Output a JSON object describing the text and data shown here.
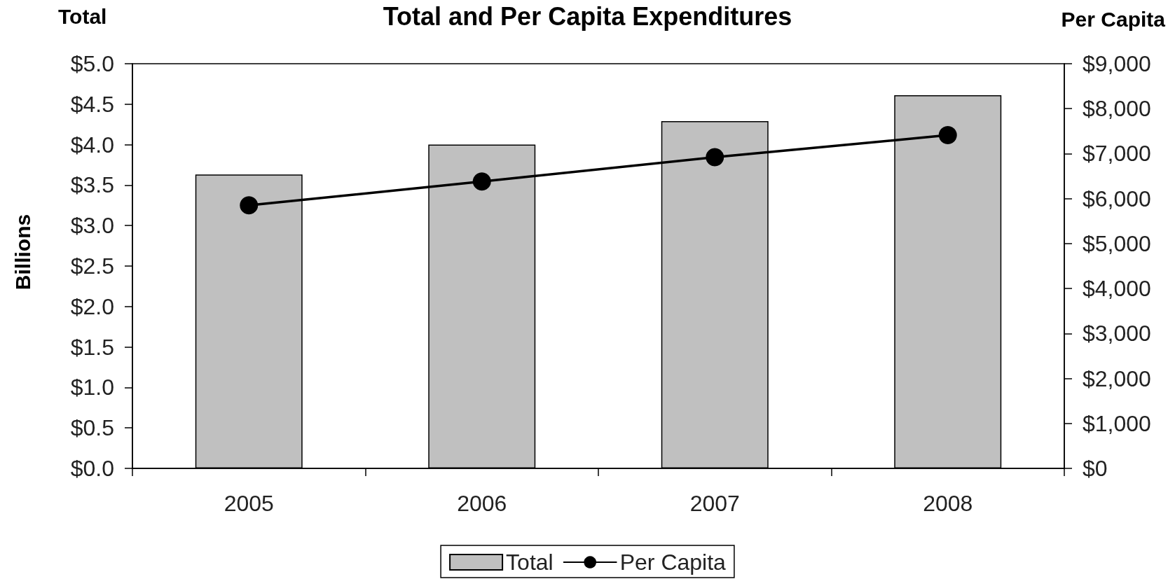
{
  "chart_data": {
    "type": "bar",
    "title": "Total and Per Capita Expenditures",
    "ylabel": "Total",
    "y2label": "Per Capita",
    "annotations": [
      "Billions"
    ],
    "categories": [
      "2005",
      "2006",
      "2007",
      "2008"
    ],
    "series": [
      {
        "name": "Total",
        "color": "#c0c0c0",
        "values": [
          3.63,
          4.0,
          4.29,
          4.61
        ]
      },
      {
        "name": "Per Capita",
        "type": "line",
        "axis": "y2",
        "color": "#000000",
        "values": [
          5850,
          6380,
          6920,
          7410
        ]
      }
    ],
    "ylim": [
      0,
      5
    ],
    "yticks": [
      {
        "value": 0,
        "label": "$0.0"
      },
      {
        "value": 0.5,
        "label": "$0.5"
      },
      {
        "value": 1,
        "label": "$1.0"
      },
      {
        "value": 1.5,
        "label": "$1.5"
      },
      {
        "value": 2,
        "label": "$2.0"
      },
      {
        "value": 2.5,
        "label": "$2.5"
      },
      {
        "value": 3,
        "label": "$3.0"
      },
      {
        "value": 3.5,
        "label": "$3.5"
      },
      {
        "value": 4,
        "label": "$4.0"
      },
      {
        "value": 4.5,
        "label": "$4.5"
      },
      {
        "value": 5,
        "label": "$5.0"
      }
    ],
    "y2lim": [
      0,
      9000
    ],
    "y2ticks": [
      {
        "value": 0,
        "label": "$0"
      },
      {
        "value": 1000,
        "label": "$1,000"
      },
      {
        "value": 2000,
        "label": "$2,000"
      },
      {
        "value": 3000,
        "label": "$3,000"
      },
      {
        "value": 4000,
        "label": "$4,000"
      },
      {
        "value": 5000,
        "label": "$5,000"
      },
      {
        "value": 6000,
        "label": "$6,000"
      },
      {
        "value": 7000,
        "label": "$7,000"
      },
      {
        "value": 8000,
        "label": "$8,000"
      },
      {
        "value": 9000,
        "label": "$9,000"
      }
    ],
    "legend": "bottom",
    "marker": "circle"
  }
}
